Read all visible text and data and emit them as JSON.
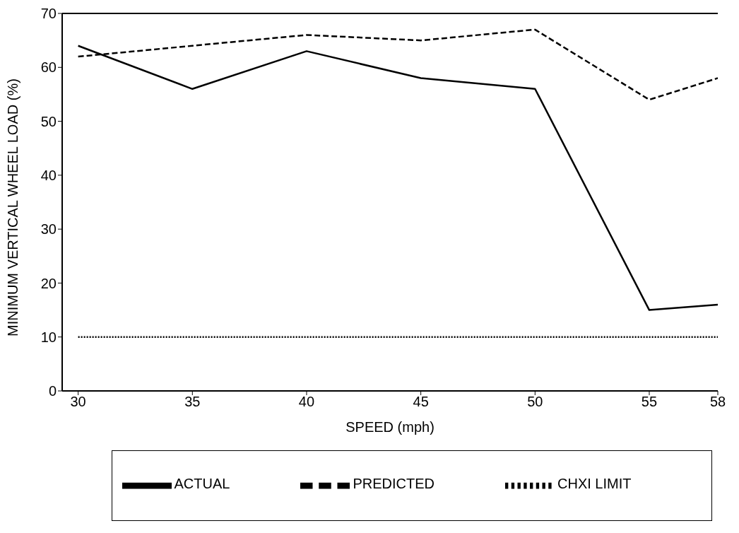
{
  "chart_data": {
    "type": "line",
    "xlabel": "SPEED (mph)",
    "ylabel": "MINIMUM VERTICAL WHEEL LOAD (%)",
    "x": [
      30,
      35,
      40,
      45,
      50,
      55,
      58
    ],
    "series": [
      {
        "name": "ACTUAL",
        "color": "#000000",
        "line_style": "solid",
        "values": [
          64,
          56,
          63,
          58,
          56,
          15,
          16
        ]
      },
      {
        "name": "PREDICTED",
        "color": "#000000",
        "line_style": "dashed",
        "values": [
          62,
          64,
          66,
          65,
          67,
          54,
          58
        ]
      },
      {
        "name": "CHXI LIMIT",
        "color": "#000000",
        "line_style": "dotted",
        "values": [
          10,
          10,
          10,
          10,
          10,
          10,
          10
        ]
      }
    ],
    "xlim": [
      29.3,
      58
    ],
    "xticks": [
      30,
      35,
      40,
      45,
      50,
      55,
      58
    ],
    "ylim": [
      0,
      70
    ],
    "yticks": [
      0,
      10,
      20,
      30,
      40,
      50,
      60,
      70
    ],
    "grid": false,
    "legend": "bottom",
    "marker": "none"
  }
}
